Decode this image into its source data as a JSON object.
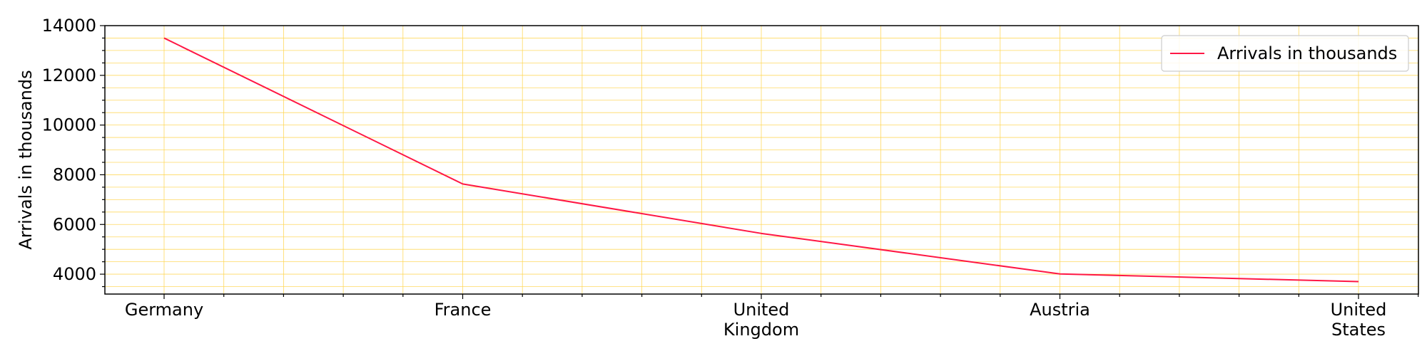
{
  "chart_data": {
    "type": "line",
    "title": "",
    "xlabel": "",
    "ylabel": "Arrivals in thousands",
    "categories": [
      "Germany",
      "France",
      "United\nKingdom",
      "Austria",
      "United\nStates"
    ],
    "series": [
      {
        "name": "Arrivals in thousands",
        "values": [
          13500,
          7630,
          5640,
          4010,
          3700
        ],
        "color": "#ff1744"
      }
    ],
    "ylim": [
      3200,
      14000
    ],
    "yticks": [
      4000,
      6000,
      8000,
      10000,
      12000,
      14000
    ],
    "grid": true,
    "grid_color": "#ffd54f",
    "legend_position": "top-right"
  }
}
